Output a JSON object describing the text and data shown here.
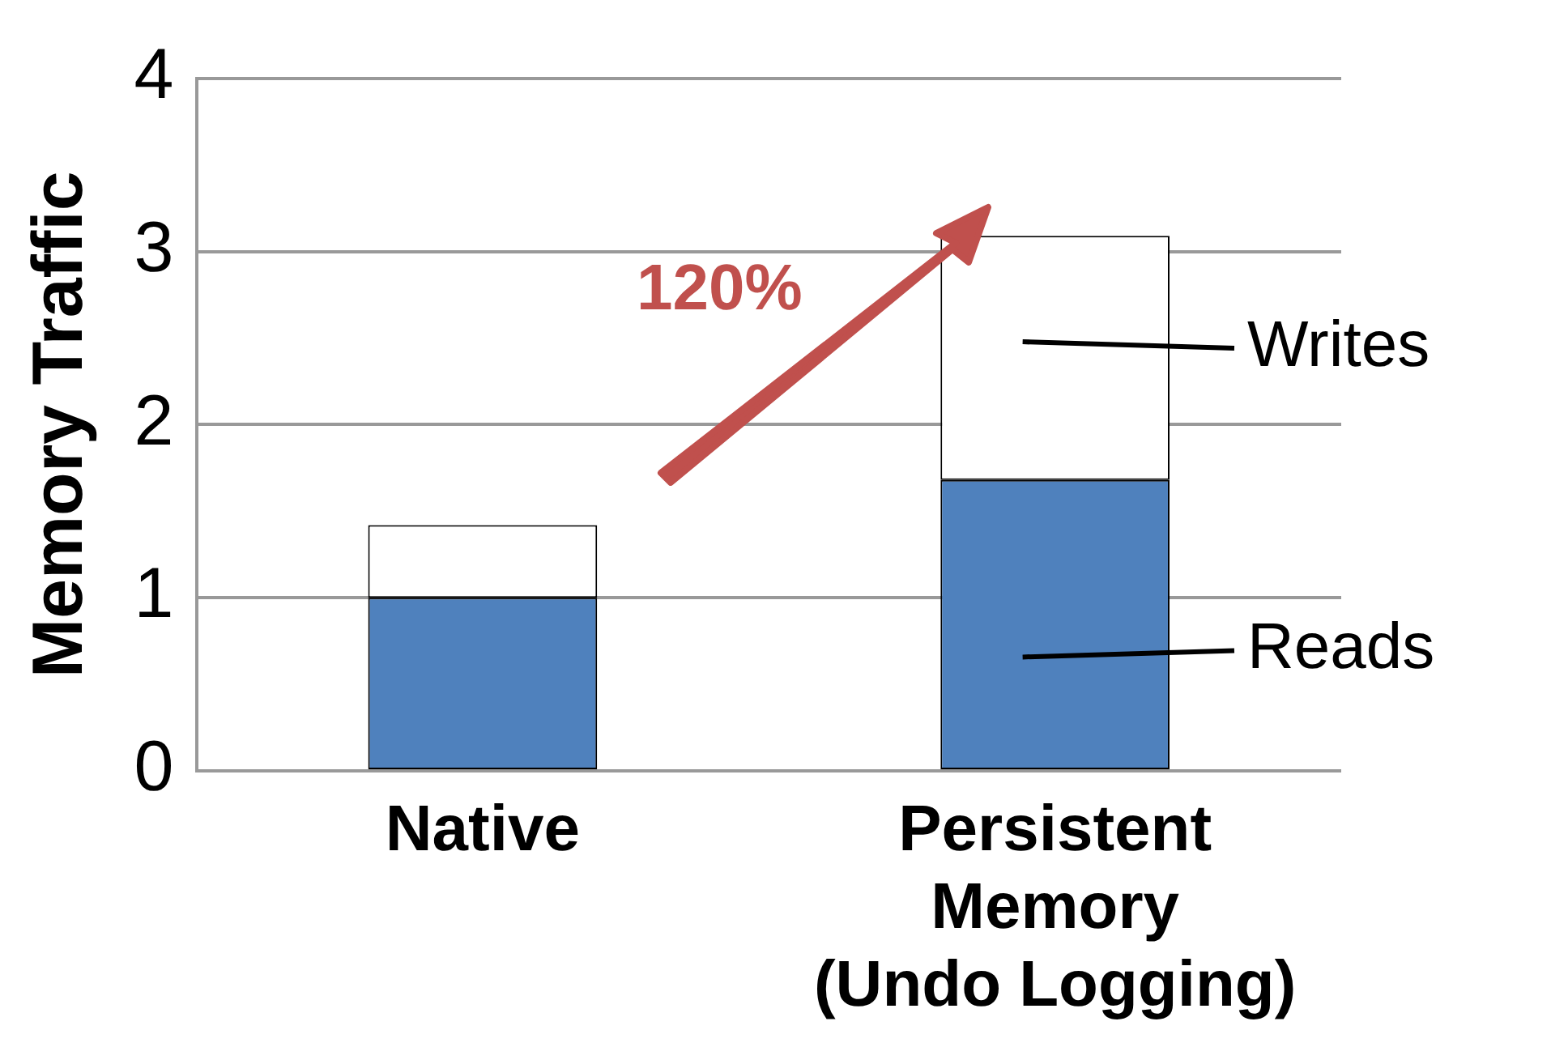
{
  "chart_data": {
    "type": "bar",
    "ylabel": "Memory Traffic",
    "categories": [
      "Native",
      "Persistent Memory (Undo Logging)"
    ],
    "series": [
      {
        "name": "Reads",
        "color": "#4f81bd",
        "values": [
          1.0,
          1.68
        ]
      },
      {
        "name": "Writes",
        "color": "#ffffff",
        "values": [
          0.42,
          1.41
        ]
      }
    ],
    "stacked": true,
    "ylim": [
      0,
      4
    ],
    "yticks": [
      0,
      1,
      2,
      3,
      4
    ],
    "grid": "y",
    "legend": "right",
    "annotations": [
      "120%"
    ]
  }
}
